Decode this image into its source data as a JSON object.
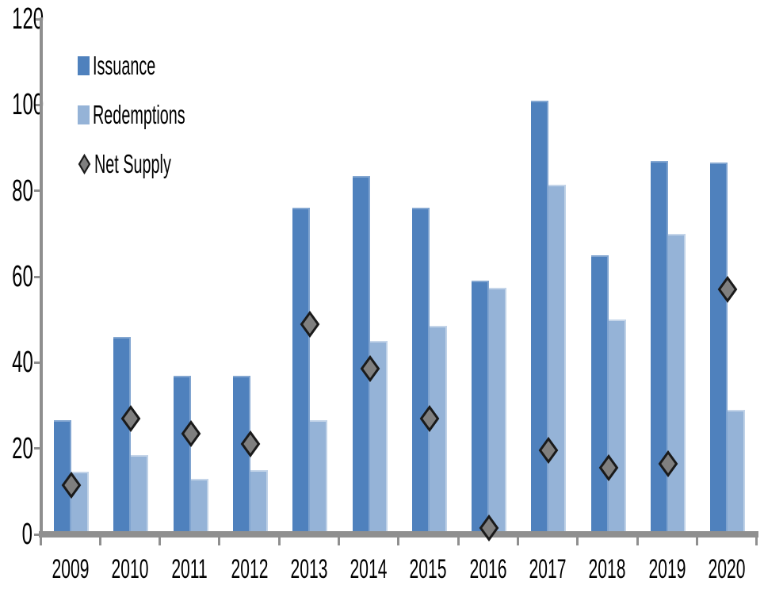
{
  "chart_data": {
    "type": "bar",
    "title": "",
    "categories": [
      "2009",
      "2010",
      "2011",
      "2012",
      "2013",
      "2014",
      "2015",
      "2016",
      "2017",
      "2018",
      "2019",
      "2020"
    ],
    "series": [
      {
        "name": "Issuance",
        "type": "bar",
        "color": "#4F81BD",
        "values": [
          26.5,
          46,
          37,
          37,
          76,
          83.5,
          76,
          59,
          101,
          65,
          87,
          86.5
        ]
      },
      {
        "name": "Redemptions",
        "type": "bar",
        "color": "#95B3D7",
        "values": [
          14.5,
          18.5,
          13,
          15,
          26.5,
          45,
          48.5,
          57.5,
          81.5,
          50,
          70,
          29
        ]
      },
      {
        "name": "Net Supply",
        "type": "scatter",
        "marker": "diamond",
        "color": "#7F7F7F",
        "marker_border_color": "#1A1A1A",
        "values": [
          11.5,
          27,
          23.5,
          21,
          49,
          38.5,
          27,
          1.5,
          19.5,
          15.5,
          16.5,
          57
        ]
      }
    ],
    "xlabel": "",
    "ylabel": "",
    "ylim": [
      0,
      120
    ],
    "y_ticks": [
      0,
      20,
      40,
      60,
      80,
      100,
      120
    ],
    "grid": false,
    "legend_position": "upper-left",
    "axis_color": "#8F8F8F",
    "text_color": "#000000",
    "background": "#FFFFFF"
  }
}
